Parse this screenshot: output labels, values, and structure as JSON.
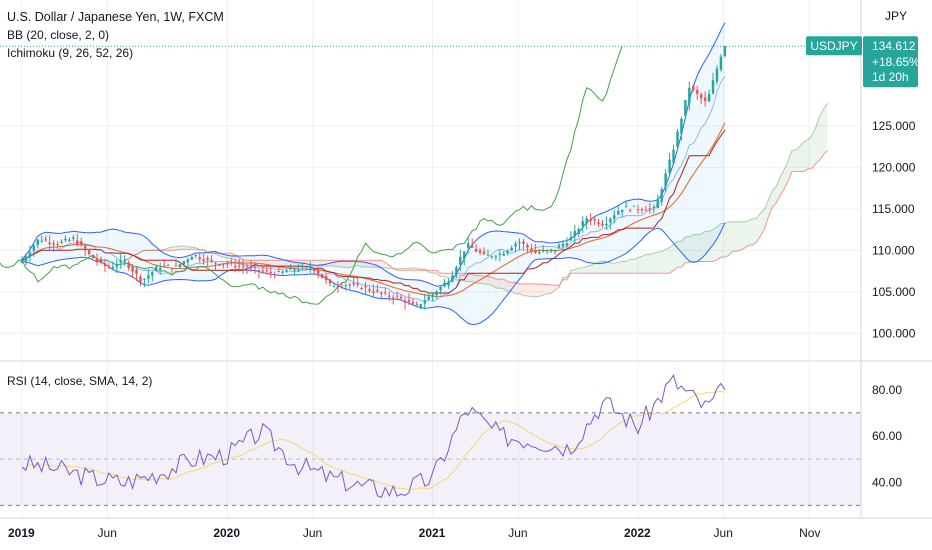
{
  "legend": {
    "title": "U.S. Dollar / Japanese Yen, 1W, FXCM",
    "bb": "BB (20, close, 2, 0)",
    "ichimoku": "Ichimoku (9, 26, 52, 26)",
    "rsi": "RSI (14, close, SMA, 14, 2)"
  },
  "price_badge": {
    "symbol": "USDJPY",
    "price": "134.612",
    "change": "+18.65%",
    "countdown": "1d 20h"
  },
  "colors": {
    "up": "#26a69a",
    "down": "#ef5350",
    "bb_band": "#2962ff",
    "kijun": "#b71c1c",
    "tenkan_sma": "#e0722b",
    "chikou": "#43a047",
    "rsi_line": "#7e57c2",
    "rsi_sma": "#f5d76e",
    "badge": "#26a69a"
  },
  "chart_data": [
    {
      "type": "candlestick",
      "title": "U.S. Dollar / Japanese Yen, 1W, FXCM",
      "yaxis_unit": "JPY",
      "y_ticks": [
        100,
        105,
        110,
        115,
        120,
        125
      ],
      "x_ticks": [
        "2019",
        "Jun",
        "2020",
        "Jun",
        "2021",
        "Jun",
        "2022",
        "Jun",
        "Nov"
      ],
      "ylim": [
        97.5,
        138.5
      ],
      "last_price": 134.612,
      "price_monthly_close": [
        [
          "2019-01",
          108.8
        ],
        [
          "2019-02",
          111.4
        ],
        [
          "2019-03",
          110.8
        ],
        [
          "2019-04",
          111.4
        ],
        [
          "2019-05",
          109.3
        ],
        [
          "2019-06",
          107.9
        ],
        [
          "2019-07",
          108.7
        ],
        [
          "2019-08",
          106.3
        ],
        [
          "2019-09",
          108.1
        ],
        [
          "2019-10",
          108.0
        ],
        [
          "2019-11",
          109.5
        ],
        [
          "2019-12",
          108.6
        ],
        [
          "2020-01",
          108.4
        ],
        [
          "2020-02",
          107.9
        ],
        [
          "2020-03",
          107.5
        ],
        [
          "2020-04",
          107.2
        ],
        [
          "2020-05",
          107.8
        ],
        [
          "2020-06",
          107.9
        ],
        [
          "2020-07",
          105.8
        ],
        [
          "2020-08",
          105.9
        ],
        [
          "2020-09",
          105.5
        ],
        [
          "2020-10",
          104.7
        ],
        [
          "2020-11",
          104.3
        ],
        [
          "2020-12",
          103.2
        ],
        [
          "2021-01",
          104.7
        ],
        [
          "2021-02",
          106.6
        ],
        [
          "2021-03",
          110.7
        ],
        [
          "2021-04",
          109.3
        ],
        [
          "2021-05",
          109.6
        ],
        [
          "2021-06",
          111.1
        ],
        [
          "2021-07",
          109.7
        ],
        [
          "2021-08",
          110.0
        ],
        [
          "2021-09",
          111.3
        ],
        [
          "2021-10",
          113.9
        ],
        [
          "2021-11",
          113.2
        ],
        [
          "2021-12",
          115.1
        ],
        [
          "2022-01",
          115.1
        ],
        [
          "2022-02",
          115.0
        ],
        [
          "2022-03",
          121.7
        ],
        [
          "2022-04",
          129.7
        ],
        [
          "2022-05",
          127.7
        ],
        [
          "2022-06",
          134.6
        ]
      ]
    },
    {
      "type": "line",
      "title": "RSI (14, close, SMA, 14, 2)",
      "y_ticks": [
        40.0,
        60.0,
        80.0
      ],
      "band_levels": [
        30,
        50,
        70
      ],
      "ylim": [
        25,
        92
      ],
      "rsi_monthly": [
        [
          "2019-01",
          48
        ],
        [
          "2019-03",
          46
        ],
        [
          "2019-05",
          42
        ],
        [
          "2019-07",
          40
        ],
        [
          "2019-09",
          44
        ],
        [
          "2019-11",
          50
        ],
        [
          "2020-01",
          52
        ],
        [
          "2020-03",
          62
        ],
        [
          "2020-05",
          48
        ],
        [
          "2020-07",
          42
        ],
        [
          "2020-09",
          38
        ],
        [
          "2020-11",
          36
        ],
        [
          "2021-01",
          42
        ],
        [
          "2021-03",
          72
        ],
        [
          "2021-05",
          60
        ],
        [
          "2021-07",
          58
        ],
        [
          "2021-09",
          55
        ],
        [
          "2021-11",
          75
        ],
        [
          "2022-01",
          64
        ],
        [
          "2022-03",
          84
        ],
        [
          "2022-05",
          72
        ],
        [
          "2022-06",
          80
        ]
      ]
    }
  ]
}
